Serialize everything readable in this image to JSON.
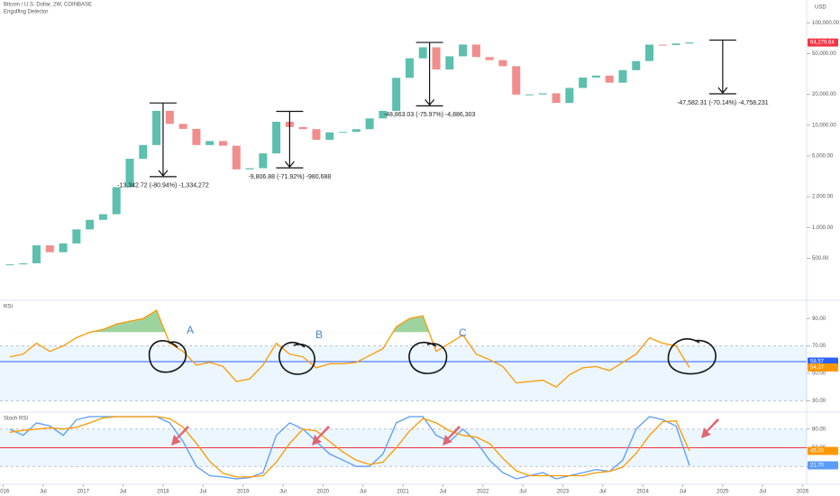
{
  "chart_data": {
    "type": "candlestick",
    "title": "Bitcoin / U.S. Dollar, 2W, COINBASE",
    "subtitle": "Engulfing Detector",
    "y_axis_label": "USD",
    "log_scale": true,
    "up_color": "#5dbfae",
    "down_color": "#f28d8d",
    "xlim": [
      2015.96,
      2026.05
    ],
    "ylim": [
      207,
      142000
    ],
    "yticks": [
      {
        "value": 500,
        "label": "500.00"
      },
      {
        "value": 1000,
        "label": "1,000.00"
      },
      {
        "value": 2000,
        "label": "2,000.00"
      },
      {
        "value": 5000,
        "label": "5,000.00"
      },
      {
        "value": 10000,
        "label": "10,000.00"
      },
      {
        "value": 20000,
        "label": "20,000.00"
      },
      {
        "value": 50000,
        "label": "50,000.00"
      },
      {
        "value": 100000,
        "label": "100,000.00"
      }
    ],
    "xticks": [
      2016,
      {
        "value": 2016.5,
        "label": "Jul"
      },
      2017,
      {
        "value": 2017.5,
        "label": "Jul"
      },
      2018,
      {
        "value": 2018.5,
        "label": "Jul"
      },
      2019,
      {
        "value": 2019.5,
        "label": "Jul"
      },
      2020,
      {
        "value": 2020.5,
        "label": "Jul"
      },
      2021,
      {
        "value": 2021.5,
        "label": "Jul"
      },
      2022,
      {
        "value": 2022.5,
        "label": "Jul"
      },
      2023,
      {
        "value": 2023.5,
        "label": "Jul"
      },
      2024,
      {
        "value": 2024.5,
        "label": "Jul"
      },
      2025,
      {
        "value": 2025.5,
        "label": "Jul"
      },
      2026
    ],
    "x": [
      "2016-01",
      "2016-03",
      "2016-05",
      "2016-07",
      "2016-09",
      "2016-11",
      "2017-01",
      "2017-03",
      "2017-05",
      "2017-07",
      "2017-09",
      "2017-11",
      "2018-01",
      "2018-03",
      "2018-05",
      "2018-07",
      "2018-09",
      "2018-11",
      "2019-01",
      "2019-03",
      "2019-05",
      "2019-07",
      "2019-09",
      "2019-11",
      "2020-01",
      "2020-03",
      "2020-05",
      "2020-07",
      "2020-09",
      "2020-11",
      "2021-01",
      "2021-03",
      "2021-05",
      "2021-07",
      "2021-09",
      "2021-11",
      "2022-01",
      "2022-03",
      "2022-05",
      "2022-07",
      "2022-09",
      "2022-11",
      "2023-01",
      "2023-03",
      "2023-05",
      "2023-07",
      "2023-09",
      "2023-11",
      "2024-01",
      "2024-03",
      "2024-05",
      "2024-07"
    ],
    "open": [
      430,
      437,
      448,
      670,
      575,
      700,
      960,
      1190,
      1350,
      2480,
      4700,
      6400,
      13800,
      10300,
      9200,
      6400,
      7000,
      6300,
      3700,
      3800,
      5300,
      10800,
      9600,
      9150,
      7200,
      8500,
      8600,
      9140,
      11650,
      13800,
      29000,
      45000,
      57700,
      35000,
      47100,
      61300,
      46300,
      43200,
      37700,
      19900,
      20000,
      20500,
      16500,
      23100,
      29200,
      30500,
      26000,
      34500,
      42300,
      61200,
      60600,
      62700
    ],
    "close": [
      437,
      448,
      670,
      575,
      700,
      960,
      1190,
      1350,
      2480,
      4700,
      6400,
      13800,
      10300,
      9200,
      6400,
      7000,
      6300,
      3700,
      3800,
      5300,
      10800,
      9600,
      9150,
      7200,
      8500,
      8600,
      9140,
      11650,
      13800,
      29000,
      45000,
      57700,
      35000,
      47100,
      61300,
      46300,
      43200,
      37700,
      19900,
      20000,
      20500,
      16500,
      23100,
      29200,
      30500,
      26000,
      34500,
      42300,
      61200,
      60600,
      62700,
      64279.64
    ],
    "last_label": "64,279.64",
    "annotations": [
      {
        "x": "2018-01",
        "from": 16485.72,
        "to": 3143,
        "label": "-13,342.72 (-80.94%) -1,334,272"
      },
      {
        "x": "2019-08",
        "from": 13636.2,
        "to": 3829.32,
        "label": "-9,806.88 (-71.92%) -980,688"
      },
      {
        "x": "2021-05",
        "from": 64317,
        "to": 15453.97,
        "label": "-48,863.03 (-75.97%) -4,886,303"
      },
      {
        "x": "2025-01",
        "from": 67840,
        "to": 20257.69,
        "label": "-47,582.31 (-70.14%) -4,758,231"
      }
    ],
    "panels": [
      {
        "type": "line",
        "title": "RSI",
        "markers": [
          "A",
          "B",
          "C"
        ],
        "ylim": [
          25,
          100
        ],
        "bands": [
          30,
          70
        ],
        "fill_above": 80,
        "yticks": [
          {
            "value": 30,
            "label": "30.00"
          },
          {
            "value": 50,
            "label": "50.00"
          },
          {
            "value": 70,
            "label": "70.00"
          },
          {
            "value": 90,
            "label": "90.00"
          }
        ],
        "ma_line": 58.57,
        "ma_label": "58.57",
        "ma_color": "#2962ff",
        "series": [
          {
            "color": "#ff9800",
            "last_label": "54.27",
            "values": [
              62,
              64,
              72,
              66,
              70,
              76,
              80,
              82,
              86,
              88,
              90,
              96,
              72,
              66,
              56,
              58,
              55,
              44,
              46,
              56,
              72,
              64,
              62,
              54,
              57,
              57,
              58,
              63,
              68,
              84,
              90,
              92,
              66,
              72,
              78,
              64,
              60,
              55,
              43,
              44,
              45,
              40,
              49,
              54,
              55,
              52,
              58,
              64,
              76,
              72,
              70,
              54.27
            ]
          }
        ]
      },
      {
        "type": "line",
        "title": "Stoch RSI",
        "ylim": [
          0,
          100
        ],
        "bands": [
          20,
          80
        ],
        "midline": 50,
        "midline_color": "#f23645",
        "yticks": [
          {
            "value": 20,
            "label": "20.00"
          },
          {
            "value": 50,
            "label": "50.00"
          },
          {
            "value": 80,
            "label": "80.00"
          }
        ],
        "series": [
          {
            "color": "#5b9cf6",
            "last_label": "21.70",
            "values": [
              80,
              70,
              90,
              85,
              70,
              95,
              100,
              100,
              100,
              100,
              100,
              100,
              90,
              60,
              20,
              5,
              3,
              0,
              2,
              10,
              70,
              90,
              80,
              60,
              40,
              30,
              20,
              20,
              40,
              90,
              100,
              100,
              70,
              60,
              80,
              60,
              30,
              10,
              0,
              5,
              10,
              0,
              5,
              10,
              15,
              12,
              30,
              80,
              100,
              95,
              85,
              21.7
            ]
          },
          {
            "color": "#ff9800",
            "last_label": "45.00",
            "values": [
              75,
              78,
              80,
              82,
              80,
              83,
              90,
              98,
              100,
              100,
              100,
              100,
              97,
              83,
              57,
              28,
              9,
              3,
              3,
              5,
              27,
              57,
              80,
              77,
              60,
              43,
              30,
              23,
              27,
              50,
              77,
              97,
              90,
              77,
              70,
              67,
              57,
              33,
              13,
              5,
              5,
              5,
              5,
              5,
              10,
              12,
              19,
              41,
              70,
              92,
              93,
              45
            ]
          }
        ]
      }
    ]
  }
}
